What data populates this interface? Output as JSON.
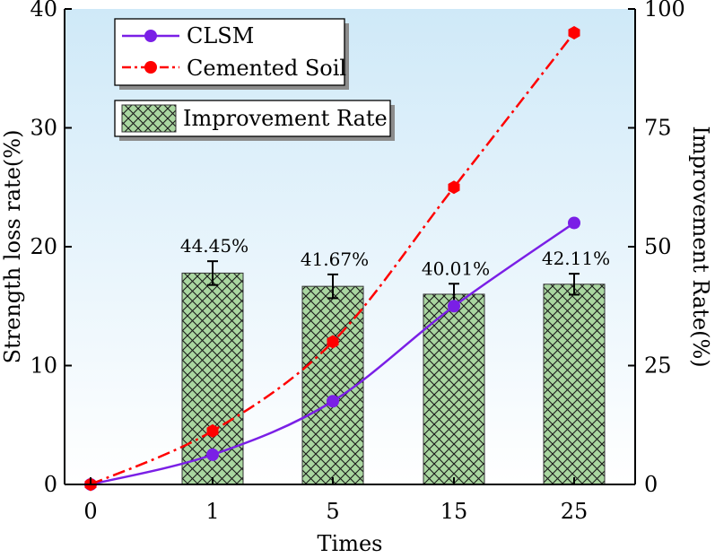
{
  "chart_data": {
    "type": "bar+line",
    "categories": [
      "0",
      "1",
      "5",
      "15",
      "25"
    ],
    "xlabel": "Times",
    "ylabel_left": "Strength loss rate(%)",
    "ylabel_right": "Improvement Rate(%)",
    "ylim_left": [
      0,
      40
    ],
    "ylim_right": [
      0,
      100
    ],
    "yticks_left": [
      "0",
      "10",
      "20",
      "30",
      "40"
    ],
    "yticks_right": [
      "0",
      "25",
      "50",
      "75",
      "100"
    ],
    "bars": {
      "name": "Improvement Rate",
      "axis": "right",
      "categories": [
        "1",
        "5",
        "15",
        "25"
      ],
      "values": [
        44.45,
        41.67,
        40.01,
        42.11
      ],
      "error": [
        2.5,
        2.5,
        2.2,
        2.2
      ],
      "labels": [
        "44.45%",
        "41.67%",
        "40.01%",
        "42.11%"
      ]
    },
    "series": [
      {
        "name": "CLSM",
        "axis": "left",
        "values": [
          0,
          2.5,
          7.0,
          15.0,
          22.0
        ]
      },
      {
        "name": "Cemented Soil",
        "axis": "left",
        "values": [
          0,
          4.5,
          12.0,
          25.0,
          38.0
        ]
      }
    ]
  },
  "colors": {
    "clsm": "#7a1fe6",
    "cemented": "#ff0000",
    "bar_fill": "#a9d6a0",
    "bg_top": "#cfe9f8",
    "bg_bottom": "#ffffff"
  }
}
